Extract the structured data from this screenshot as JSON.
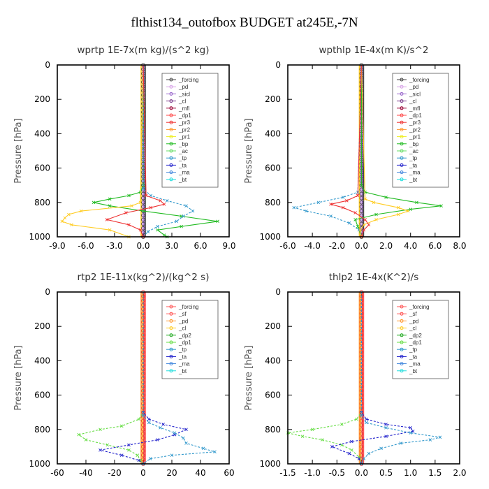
{
  "title": "flthist134_outofbox  BUDGET at245E,-7N",
  "colors": {
    "forcing": "#444444",
    "pd": "#d7a3e6",
    "sicl": "#9966cc",
    "cl": "#7a3b8a",
    "mfl": "#990033",
    "dp1": "#ff4444",
    "pr3": "#ee3333",
    "pr2": "#ff9933",
    "pr1": "#eeee22",
    "bp": "#22bb22",
    "ac": "#66dd66",
    "tp": "#3399cc",
    "ta": "#2222cc",
    "ma": "#4488dd",
    "bt": "#22dddd",
    "sf": "#ff5555",
    "cl2": "#ffcc22",
    "dp2": "#22aa22",
    "dp1b": "#66dd44"
  },
  "chart_data": [
    {
      "type": "line",
      "title": "wprtp   1E-7x(m kg)/(s^2 kg)",
      "ylabel": "Pressure [hPa]",
      "xlim": [
        -9,
        9
      ],
      "ylim": [
        1000,
        0
      ],
      "xticks": [
        "-9.0",
        "-6.0",
        "-3.0",
        "0.0",
        "3.0",
        "6.0",
        "9.0"
      ],
      "xtick_values": [
        -9,
        -6,
        -3,
        0,
        3,
        6,
        9
      ],
      "yticks": [
        "0",
        "200",
        "400",
        "600",
        "800",
        "1000"
      ],
      "ytick_values": [
        0,
        200,
        400,
        600,
        800,
        1000
      ],
      "legend": [
        "_forcing",
        "_pd",
        "_sicl",
        "_cl",
        "_mfl",
        "_dp1",
        "_pr3",
        "_pr2",
        "_pr1",
        "_bp",
        "_ac",
        "_tp",
        "_ta",
        "_ma",
        "_bt"
      ],
      "legend_colors": [
        "#444444",
        "#d7a3e6",
        "#9966cc",
        "#7a3b8a",
        "#990033",
        "#ff4444",
        "#ee3333",
        "#ff9933",
        "#eeee22",
        "#22bb22",
        "#66dd66",
        "#3399cc",
        "#2222cc",
        "#4488dd",
        "#22dddd"
      ],
      "series": [
        {
          "color": "#22bb22",
          "y": [
            0,
            700,
            740,
            760,
            780,
            800,
            820,
            850,
            880,
            910,
            940,
            960,
            990,
            1000
          ],
          "x": [
            0,
            0,
            -0.3,
            -1.5,
            -3.5,
            -5.2,
            -3.5,
            0,
            4,
            7.8,
            4,
            1.5,
            2.2,
            2.5
          ]
        },
        {
          "color": "#3399cc",
          "y": [
            0,
            720,
            760,
            790,
            820,
            850,
            880,
            910,
            940,
            970,
            1000
          ],
          "x": [
            0,
            0,
            0.8,
            2.5,
            4.5,
            5.2,
            4.2,
            3.5,
            1.5,
            0.5,
            0
          ],
          "dash": true
        },
        {
          "color": "#ffcc22",
          "y": [
            0,
            800,
            820,
            850,
            870,
            890,
            910,
            930,
            960,
            1000
          ],
          "x": [
            0,
            -0.3,
            -1.2,
            -6.5,
            -7.8,
            -8.2,
            -8.5,
            -7.5,
            -3.5,
            -1.5
          ]
        },
        {
          "color": "#ee3333",
          "y": [
            0,
            760,
            790,
            810,
            830,
            860,
            900,
            930,
            960,
            1000
          ],
          "x": [
            0,
            0.3,
            1.8,
            2.2,
            0.8,
            -1.8,
            -3.8,
            -1.5,
            -0.3,
            0
          ]
        }
      ]
    },
    {
      "type": "line",
      "title": "wpthlp   1E-4x(m K)/s^2",
      "ylabel": "Pressure [hPa]",
      "xlim": [
        -6,
        8
      ],
      "ylim": [
        1000,
        0
      ],
      "xticks": [
        "-6.0",
        "-4.0",
        "-2.0",
        "0.0",
        "2.0",
        "4.0",
        "6.0",
        "8.0"
      ],
      "xtick_values": [
        -6,
        -4,
        -2,
        0,
        2,
        4,
        6,
        8
      ],
      "yticks": [
        "0",
        "200",
        "400",
        "600",
        "800",
        "1000"
      ],
      "ytick_values": [
        0,
        200,
        400,
        600,
        800,
        1000
      ],
      "legend": [
        "_forcing",
        "_pd",
        "_sicl",
        "_cl",
        "_mfl",
        "_dp1",
        "_pr3",
        "_pr2",
        "_pr1",
        "_bp",
        "_ac",
        "_tp",
        "_ta",
        "_ma",
        "_bt"
      ],
      "legend_colors": [
        "#444444",
        "#d7a3e6",
        "#9966cc",
        "#7a3b8a",
        "#990033",
        "#ff4444",
        "#ee3333",
        "#ff9933",
        "#eeee22",
        "#22bb22",
        "#66dd66",
        "#3399cc",
        "#2222cc",
        "#4488dd",
        "#22dddd"
      ],
      "series": [
        {
          "color": "#22bb22",
          "y": [
            0,
            700,
            740,
            770,
            800,
            820,
            840,
            870,
            900,
            940,
            1000
          ],
          "x": [
            0,
            0,
            0.3,
            2.0,
            4.5,
            6.5,
            4.0,
            1.2,
            -0.5,
            -0.3,
            0
          ]
        },
        {
          "color": "#3399cc",
          "y": [
            0,
            740,
            770,
            800,
            830,
            850,
            880,
            920,
            960,
            1000
          ],
          "x": [
            0,
            -0.3,
            -1.5,
            -3.5,
            -5.5,
            -4.5,
            -2.5,
            -1.0,
            -0.2,
            0
          ],
          "dash": true
        },
        {
          "color": "#ffcc22",
          "y": [
            0,
            780,
            800,
            830,
            850,
            870,
            900,
            930,
            960,
            1000
          ],
          "x": [
            0,
            0.3,
            1.0,
            3.0,
            3.8,
            3.0,
            1.2,
            0.2,
            -0.1,
            0
          ]
        },
        {
          "color": "#ee3333",
          "y": [
            0,
            760,
            790,
            810,
            830,
            860,
            900,
            930,
            960,
            1000
          ],
          "x": [
            0,
            -0.3,
            -1.2,
            -2.5,
            -1.5,
            -0.5,
            0.3,
            0.6,
            0.2,
            0
          ]
        }
      ]
    },
    {
      "type": "line",
      "title": "rtp2   1E-11x(kg^2)/(kg^2 s)",
      "ylabel": "Pressure [hPa]",
      "xlim": [
        -60,
        60
      ],
      "ylim": [
        1000,
        0
      ],
      "xticks": [
        "-60",
        "-40",
        "-20",
        "0",
        "20",
        "40",
        "60"
      ],
      "xtick_values": [
        -60,
        -40,
        -20,
        0,
        20,
        40,
        60
      ],
      "yticks": [
        "0",
        "200",
        "400",
        "600",
        "800",
        "1000"
      ],
      "ytick_values": [
        0,
        200,
        400,
        600,
        800,
        1000
      ],
      "legend": [
        "_forcing",
        "_sf",
        "_pd",
        "_cl",
        "_dp2",
        "_dp1",
        "_tp",
        "_ta",
        "_ma",
        "_bt"
      ],
      "legend_colors": [
        "#ff5555",
        "#ff5555",
        "#ff9933",
        "#ffcc22",
        "#22aa22",
        "#66dd44",
        "#3399cc",
        "#2222cc",
        "#4488dd",
        "#22dddd"
      ],
      "series": [
        {
          "color": "#66dd44",
          "y": [
            0,
            700,
            740,
            780,
            800,
            830,
            860,
            890,
            920,
            950,
            980,
            1000
          ],
          "x": [
            0,
            0,
            -3,
            -15,
            -30,
            -45,
            -40,
            -25,
            -10,
            -4,
            -2,
            0
          ],
          "dash": true
        },
        {
          "color": "#2222cc",
          "y": [
            0,
            700,
            740,
            770,
            800,
            830,
            860,
            890,
            920,
            950,
            980,
            1000
          ],
          "x": [
            0,
            0,
            4,
            14,
            30,
            22,
            10,
            -10,
            -30,
            -15,
            -3,
            0
          ],
          "dash": true
        },
        {
          "color": "#3399cc",
          "y": [
            0,
            720,
            760,
            790,
            820,
            850,
            880,
            910,
            930,
            950,
            970,
            1000
          ],
          "x": [
            0,
            0,
            4,
            12,
            22,
            28,
            30,
            42,
            50,
            20,
            5,
            0
          ],
          "dash": true
        }
      ]
    },
    {
      "type": "line",
      "title": "thlp2   1E-4x(K^2)/s",
      "ylabel": "Pressure [hPa]",
      "xlim": [
        -1.5,
        2.0
      ],
      "ylim": [
        1000,
        0
      ],
      "xticks": [
        "-1.5",
        "-1.0",
        "-0.5",
        "0.0",
        "0.5",
        "1.0",
        "1.5",
        "2.0"
      ],
      "xtick_values": [
        -1.5,
        -1.0,
        -0.5,
        0.0,
        0.5,
        1.0,
        1.5,
        2.0
      ],
      "yticks": [
        "0",
        "200",
        "400",
        "600",
        "800",
        "1000"
      ],
      "ytick_values": [
        0,
        200,
        400,
        600,
        800,
        1000
      ],
      "legend": [
        "_forcing",
        "_sf",
        "_pd",
        "_cl",
        "_dp2",
        "_dp1",
        "_tp",
        "_ta",
        "_ma",
        "_bt"
      ],
      "legend_colors": [
        "#ff5555",
        "#ff5555",
        "#ff9933",
        "#ffcc22",
        "#22aa22",
        "#66dd44",
        "#3399cc",
        "#2222cc",
        "#4488dd",
        "#22dddd"
      ],
      "series": [
        {
          "color": "#66dd44",
          "y": [
            0,
            700,
            740,
            770,
            800,
            820,
            840,
            860,
            890,
            920,
            960,
            1000
          ],
          "x": [
            0,
            0,
            -0.1,
            -0.4,
            -1.0,
            -1.5,
            -1.2,
            -0.8,
            -0.4,
            -0.2,
            -0.05,
            0
          ],
          "dash": true
        },
        {
          "color": "#2222cc",
          "y": [
            0,
            700,
            740,
            770,
            790,
            810,
            840,
            870,
            900,
            940,
            970,
            1000
          ],
          "x": [
            0,
            0,
            0.1,
            0.5,
            1.0,
            1.05,
            0.5,
            -0.2,
            -0.6,
            -0.25,
            -0.05,
            0
          ],
          "dash": true
        },
        {
          "color": "#3399cc",
          "y": [
            0,
            720,
            760,
            790,
            820,
            845,
            860,
            880,
            910,
            940,
            970,
            1000
          ],
          "x": [
            0,
            0,
            0.1,
            0.5,
            1.0,
            1.6,
            1.4,
            0.8,
            0.4,
            0.15,
            0.05,
            0
          ],
          "dash": true
        }
      ]
    }
  ]
}
